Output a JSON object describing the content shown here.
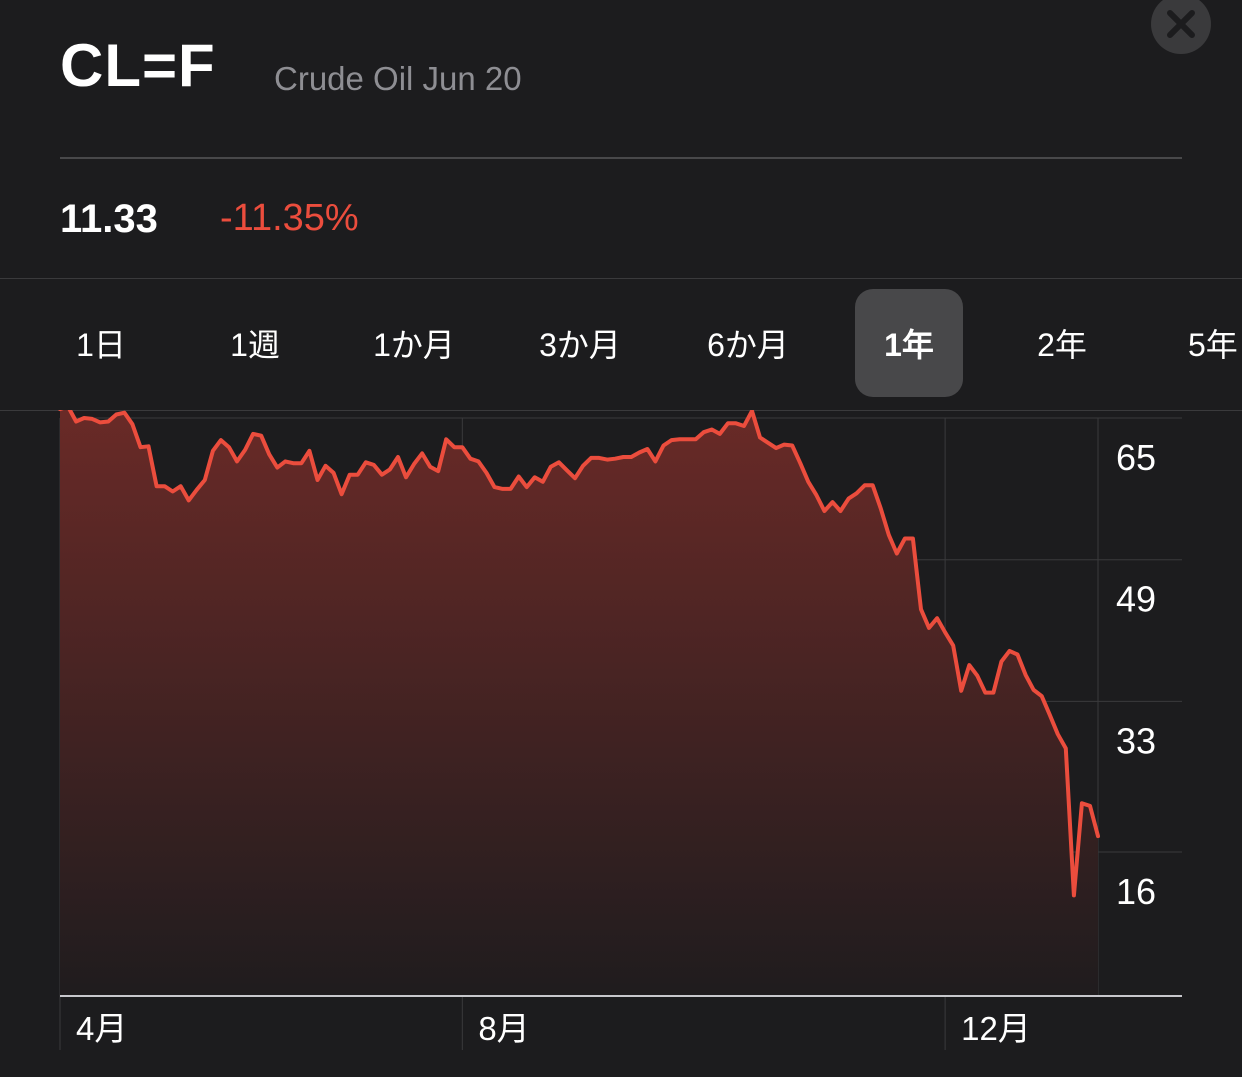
{
  "header": {
    "symbol": "CL=F",
    "name": "Crude Oil Jun 20",
    "close_icon": "close-icon"
  },
  "quote": {
    "price": "11.33",
    "change_percent": "-11.35%"
  },
  "ranges": {
    "items": [
      {
        "label": "1日",
        "active": false
      },
      {
        "label": "1週",
        "active": false
      },
      {
        "label": "1か月",
        "active": false
      },
      {
        "label": "3か月",
        "active": false
      },
      {
        "label": "6か月",
        "active": false
      },
      {
        "label": "1年",
        "active": true
      },
      {
        "label": "2年",
        "active": false
      },
      {
        "label": "5年",
        "active": false
      }
    ]
  },
  "colors": {
    "background": "#1c1c1e",
    "line": "#eb4d3d",
    "change": "#eb4d3d",
    "grid": "#3a3a3c",
    "secondary_text": "#8e8e93",
    "active_tab": "#48484a"
  },
  "chart_data": {
    "type": "area",
    "y_ticks": [
      65,
      49,
      33,
      16
    ],
    "ylim": [
      0,
      69
    ],
    "x_tick_labels": [
      "4月",
      "8月",
      "12月",
      "4月"
    ],
    "x_tick_index": [
      0,
      50,
      110,
      172
    ],
    "y_axis_position": "right",
    "grid": true,
    "values": [
      66.0,
      66.3,
      64.6,
      65.0,
      64.9,
      64.5,
      64.6,
      65.4,
      65.6,
      64.3,
      61.7,
      61.8,
      57.3,
      57.3,
      56.7,
      57.3,
      55.7,
      56.9,
      58.0,
      61.3,
      62.5,
      61.7,
      60.1,
      61.4,
      63.2,
      63.0,
      60.9,
      59.4,
      60.1,
      59.9,
      59.9,
      61.3,
      58.0,
      59.6,
      58.8,
      56.4,
      58.6,
      58.6,
      60.0,
      59.7,
      58.6,
      59.2,
      60.6,
      58.3,
      59.8,
      61.0,
      59.5,
      59.0,
      62.6,
      61.7,
      61.7,
      60.4,
      60.1,
      58.8,
      57.2,
      57.0,
      57.0,
      58.4,
      57.2,
      58.3,
      57.8,
      59.5,
      60.0,
      59.1,
      58.2,
      59.6,
      60.5,
      60.5,
      60.3,
      60.4,
      60.6,
      60.6,
      61.1,
      61.5,
      60.1,
      61.9,
      62.5,
      62.6,
      62.6,
      62.6,
      63.4,
      63.7,
      63.2,
      64.4,
      64.4,
      64.1,
      65.8,
      62.8,
      62.2,
      61.6,
      62.0,
      61.9,
      59.9,
      57.8,
      56.3,
      54.5,
      55.5,
      54.5,
      55.9,
      56.5,
      57.4,
      57.4,
      54.8,
      51.8,
      49.7,
      51.4,
      51.4,
      43.4,
      41.3,
      42.4,
      40.8,
      39.3,
      34.2,
      37.1,
      35.9,
      34.0,
      34.0,
      37.5,
      38.7,
      38.3,
      36.0,
      34.3,
      33.6,
      31.5,
      29.3,
      27.7,
      11.1,
      21.5,
      21.2,
      17.8
    ]
  }
}
